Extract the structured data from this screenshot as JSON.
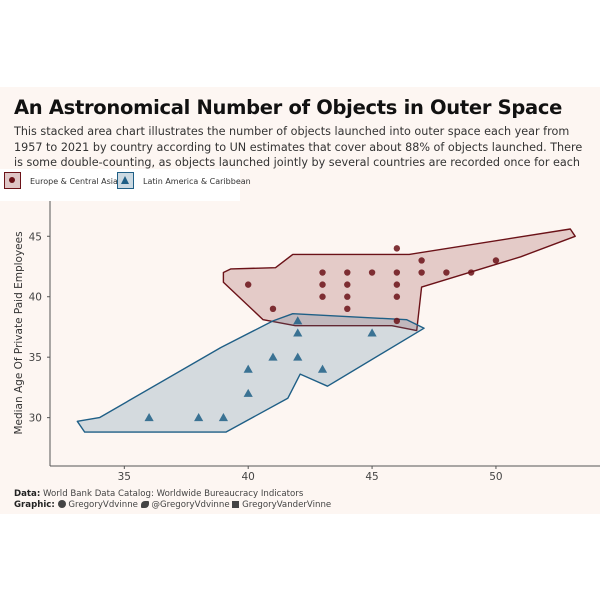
{
  "header": {
    "title": "An Astronomical Number of Objects in Outer Space",
    "subtitle": "This stacked area chart illustrates the number of objects launched into outer space each year from 1957 to 2021 by country according to UN estimates that cover about 88% of objects launched. There is some double-counting, as objects launched jointly by several countries are recorded once for each country."
  },
  "legend": {
    "items": [
      {
        "label": "Europe & Central Asia",
        "marker": "circle",
        "color": "#6b1218"
      },
      {
        "label": "Latin America & Caribbean",
        "marker": "triangle",
        "color": "#1f5f86"
      }
    ]
  },
  "caption": {
    "data_label": "Data:",
    "data_text": "World Bank Data Catalog: Worldwide Bureaucracy Indicators",
    "graphic_label": "Graphic:",
    "github": "GregoryVdvinne",
    "twitter": "@GregoryVdvinne",
    "linkedin": "GregoryVanderVinne"
  },
  "chart_data": {
    "type": "scatter",
    "title": "An Astronomical Number of Objects in Outer Space",
    "xlabel": "",
    "ylabel": "Median Age Of Private Paid Employees",
    "xlim": [
      32,
      54.2
    ],
    "ylim": [
      26,
      48
    ],
    "xticks": [
      35,
      40,
      45,
      50
    ],
    "yticks": [
      30,
      35,
      40,
      45
    ],
    "grid": false,
    "legend_position": "top-left",
    "series": [
      {
        "name": "Europe & Central Asia",
        "marker": "circle",
        "color": "#6b1218",
        "fill": "rgba(140,50,50,0.22)",
        "points": [
          [
            40,
            41
          ],
          [
            41,
            39
          ],
          [
            43,
            42
          ],
          [
            43,
            41
          ],
          [
            43,
            40
          ],
          [
            44,
            42
          ],
          [
            44,
            41
          ],
          [
            44,
            40
          ],
          [
            44,
            39
          ],
          [
            45,
            42
          ],
          [
            46,
            44
          ],
          [
            46,
            42
          ],
          [
            46,
            41
          ],
          [
            46,
            40
          ],
          [
            46,
            38
          ],
          [
            47,
            43
          ],
          [
            47,
            42
          ],
          [
            48,
            42
          ],
          [
            49,
            42
          ],
          [
            50,
            43
          ]
        ],
        "hull": [
          [
            39.0,
            42.0
          ],
          [
            39.3,
            42.3
          ],
          [
            41.1,
            42.4
          ],
          [
            41.8,
            43.5
          ],
          [
            46.5,
            43.5
          ],
          [
            53.0,
            45.6
          ],
          [
            53.2,
            45.0
          ],
          [
            51.0,
            43.3
          ],
          [
            47.0,
            40.8
          ],
          [
            46.8,
            37.2
          ],
          [
            45.8,
            37.6
          ],
          [
            41.9,
            37.6
          ],
          [
            40.6,
            38.1
          ],
          [
            39.0,
            41.2
          ]
        ]
      },
      {
        "name": "Latin America & Caribbean",
        "marker": "triangle",
        "color": "#1f5f86",
        "fill": "rgba(70,120,150,0.22)",
        "points": [
          [
            36,
            30
          ],
          [
            38,
            30
          ],
          [
            39,
            30
          ],
          [
            40,
            34
          ],
          [
            40,
            32
          ],
          [
            41,
            35
          ],
          [
            42,
            38
          ],
          [
            42,
            37
          ],
          [
            42,
            35
          ],
          [
            43,
            34
          ],
          [
            45,
            37
          ]
        ],
        "hull": [
          [
            33.1,
            29.7
          ],
          [
            33.4,
            28.8
          ],
          [
            39.1,
            28.8
          ],
          [
            41.6,
            31.6
          ],
          [
            42.1,
            33.6
          ],
          [
            43.2,
            32.6
          ],
          [
            47.1,
            37.4
          ],
          [
            46.4,
            38.1
          ],
          [
            41.8,
            38.6
          ],
          [
            41.0,
            38.0
          ],
          [
            38.9,
            35.8
          ],
          [
            34.0,
            30.0
          ]
        ]
      }
    ]
  }
}
